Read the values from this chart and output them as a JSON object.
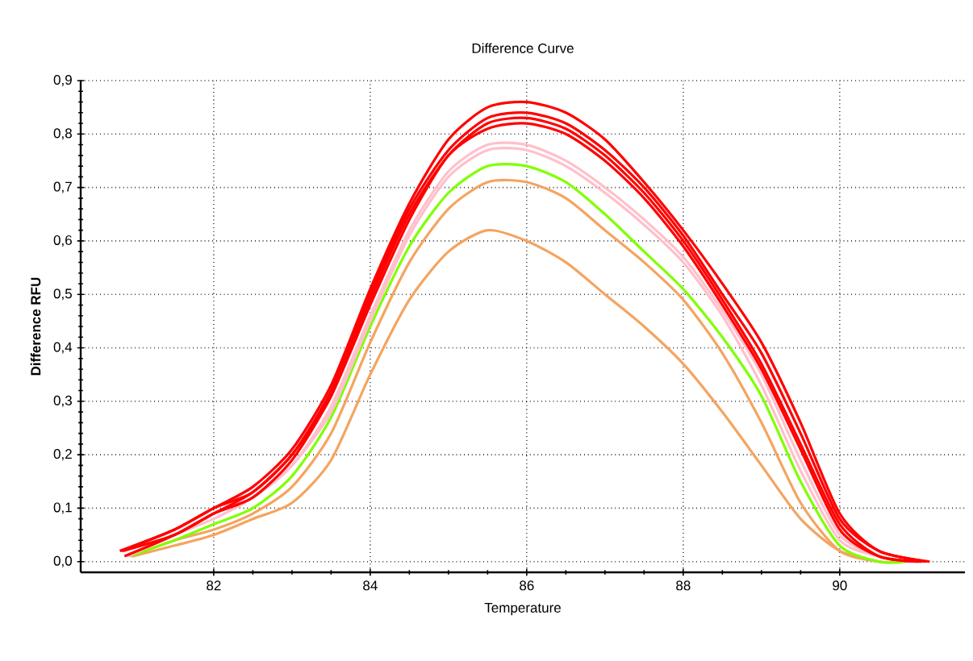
{
  "chart_data": {
    "type": "line",
    "title": "Difference Curve",
    "xlabel": "Temperature",
    "ylabel": "Difference RFU",
    "x": [
      80.8,
      81.5,
      82,
      82.5,
      83,
      83.5,
      84,
      84.5,
      85,
      85.5,
      86,
      86.5,
      87,
      87.5,
      88,
      88.5,
      89,
      89.5,
      90,
      90.5,
      91.15
    ],
    "xlim": [
      80.3,
      91.6
    ],
    "xticks": [
      82,
      84,
      86,
      88,
      90
    ],
    "ylim": [
      -0.02,
      0.9
    ],
    "yticks": [
      {
        "value": 0,
        "label": "0,0"
      },
      {
        "value": 0.1,
        "label": "0,1"
      },
      {
        "value": 0.2,
        "label": "0,2"
      },
      {
        "value": 0.3,
        "label": "0,3"
      },
      {
        "value": 0.4,
        "label": "0,4"
      },
      {
        "value": 0.5,
        "label": "0,5"
      },
      {
        "value": 0.6,
        "label": "0,6"
      },
      {
        "value": 0.7,
        "label": "0,7"
      },
      {
        "value": 0.8,
        "label": "0,8"
      },
      {
        "value": 0.9,
        "label": "0,9"
      }
    ],
    "grid": true,
    "marker": "none",
    "line_style": "solid",
    "series": [
      {
        "color": "#f4a460",
        "x": [
          80.96,
          81.5,
          82,
          82.5,
          83,
          83.5,
          84,
          84.5,
          85,
          85.5,
          86,
          86.5,
          87,
          87.5,
          88,
          88.5,
          89,
          89.5,
          90,
          90.5,
          90.75
        ],
        "values": [
          0.01,
          0.03,
          0.05,
          0.08,
          0.11,
          0.19,
          0.35,
          0.49,
          0.58,
          0.62,
          0.6,
          0.56,
          0.5,
          0.44,
          0.37,
          0.28,
          0.18,
          0.08,
          0.02,
          0.0,
          0.0
        ]
      },
      {
        "color": "#f4a460",
        "x": [
          80.94,
          81.5,
          82,
          82.5,
          83,
          83.5,
          84,
          84.5,
          85,
          85.5,
          86,
          86.5,
          87,
          87.5,
          88,
          88.5,
          89,
          89.5,
          90,
          90.5,
          90.8
        ],
        "values": [
          0.01,
          0.04,
          0.06,
          0.09,
          0.14,
          0.24,
          0.41,
          0.56,
          0.66,
          0.71,
          0.71,
          0.68,
          0.62,
          0.56,
          0.49,
          0.39,
          0.26,
          0.11,
          0.02,
          0.0,
          0.0
        ]
      },
      {
        "color": "#80ff00",
        "x": [
          80.92,
          81.5,
          82,
          82.5,
          83,
          83.5,
          84,
          84.5,
          85,
          85.5,
          86,
          86.5,
          87,
          87.5,
          88,
          88.5,
          89,
          89.5,
          90,
          90.5,
          90.85
        ],
        "values": [
          0.01,
          0.04,
          0.07,
          0.1,
          0.16,
          0.27,
          0.44,
          0.59,
          0.69,
          0.74,
          0.74,
          0.71,
          0.65,
          0.58,
          0.51,
          0.42,
          0.31,
          0.15,
          0.03,
          0.0,
          0.0
        ]
      },
      {
        "color": "#ffc0cb",
        "x": [
          80.9,
          81.5,
          82,
          82.5,
          83,
          83.5,
          84,
          84.5,
          85,
          85.5,
          86,
          86.5,
          87,
          87.5,
          88,
          88.5,
          89,
          89.5,
          90,
          90.5,
          90.9
        ],
        "values": [
          0.01,
          0.05,
          0.08,
          0.12,
          0.18,
          0.28,
          0.45,
          0.61,
          0.72,
          0.77,
          0.77,
          0.74,
          0.69,
          0.63,
          0.56,
          0.46,
          0.33,
          0.17,
          0.04,
          0.01,
          0.0
        ]
      },
      {
        "color": "#ffc0cb",
        "x": [
          80.88,
          81.5,
          82,
          82.5,
          83,
          83.5,
          84,
          84.5,
          85,
          85.5,
          86,
          86.5,
          87,
          87.5,
          88,
          88.5,
          89,
          89.5,
          90,
          90.5,
          90.95
        ],
        "values": [
          0.01,
          0.05,
          0.09,
          0.12,
          0.18,
          0.29,
          0.46,
          0.62,
          0.73,
          0.78,
          0.78,
          0.75,
          0.7,
          0.64,
          0.57,
          0.47,
          0.35,
          0.19,
          0.05,
          0.01,
          0.0
        ]
      },
      {
        "color": "#ff0000",
        "x": [
          80.86,
          81.5,
          82,
          82.5,
          83,
          83.5,
          84,
          84.5,
          85,
          85.5,
          86,
          86.5,
          87,
          87.5,
          88,
          88.5,
          89,
          89.5,
          90,
          90.5,
          91
        ],
        "values": [
          0.01,
          0.05,
          0.09,
          0.12,
          0.19,
          0.31,
          0.48,
          0.64,
          0.76,
          0.81,
          0.82,
          0.8,
          0.75,
          0.68,
          0.59,
          0.48,
          0.36,
          0.21,
          0.06,
          0.01,
          0.0
        ]
      },
      {
        "color": "#ff0000",
        "x": [
          80.84,
          81.5,
          82,
          82.5,
          83,
          83.5,
          84,
          84.5,
          85,
          85.5,
          86,
          86.5,
          87,
          87.5,
          88,
          88.5,
          89,
          89.5,
          90,
          90.5,
          91.05
        ],
        "values": [
          0.02,
          0.05,
          0.09,
          0.13,
          0.2,
          0.31,
          0.49,
          0.65,
          0.76,
          0.82,
          0.83,
          0.81,
          0.76,
          0.69,
          0.6,
          0.49,
          0.37,
          0.22,
          0.07,
          0.01,
          0.0
        ]
      },
      {
        "color": "#ff0000",
        "x": [
          80.82,
          81.5,
          82,
          82.5,
          83,
          83.5,
          84,
          84.5,
          85,
          85.5,
          86,
          86.5,
          87,
          87.5,
          88,
          88.5,
          89,
          89.5,
          90,
          90.5,
          91.1
        ],
        "values": [
          0.02,
          0.06,
          0.1,
          0.13,
          0.2,
          0.32,
          0.5,
          0.66,
          0.77,
          0.83,
          0.84,
          0.82,
          0.77,
          0.7,
          0.61,
          0.5,
          0.39,
          0.24,
          0.08,
          0.02,
          0.0
        ]
      },
      {
        "color": "#ff0000",
        "values": [
          0.02,
          0.06,
          0.1,
          0.14,
          0.21,
          0.33,
          0.51,
          0.67,
          0.79,
          0.85,
          0.86,
          0.84,
          0.79,
          0.71,
          0.62,
          0.52,
          0.41,
          0.26,
          0.09,
          0.02,
          0.0
        ]
      }
    ]
  }
}
